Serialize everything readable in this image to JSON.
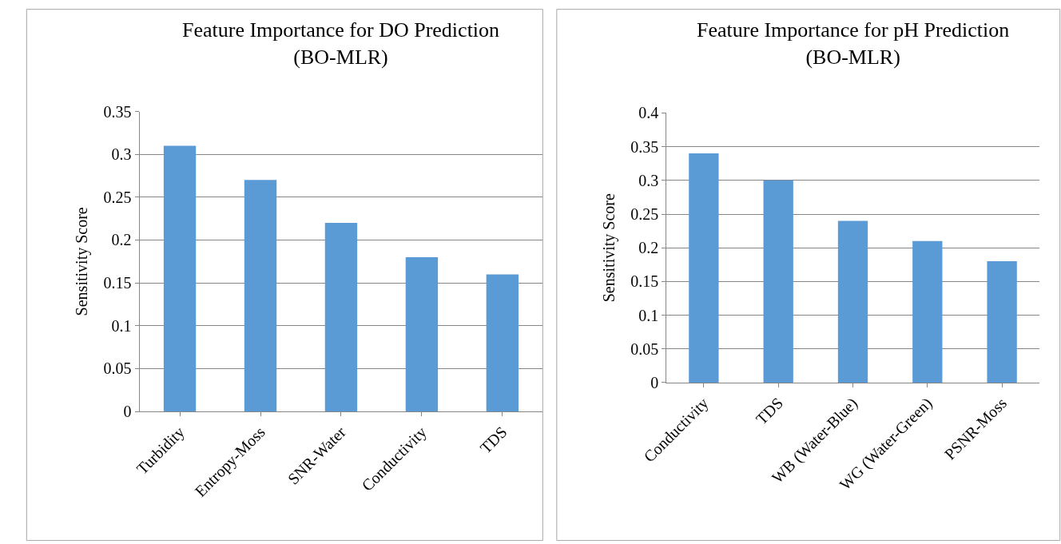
{
  "chart_data": [
    {
      "type": "bar",
      "title": "Feature Importance for DO Prediction\n(BO-MLR)",
      "ylabel": "Sensitivity Score",
      "categories": [
        "Turbidity",
        "Entropy-Moss",
        "SNR-Water",
        "Conductivity",
        "TDS"
      ],
      "values": [
        0.31,
        0.27,
        0.22,
        0.18,
        0.16
      ],
      "color": "#5b9bd5",
      "ylim": [
        0,
        0.35
      ],
      "yticks": [
        {
          "value": 0,
          "label": "0"
        },
        0.05,
        0.1,
        0.15,
        0.2,
        0.25,
        0.3,
        0.35
      ],
      "grid": "y"
    },
    {
      "type": "bar",
      "title": "Feature Importance for pH Prediction\n(BO-MLR)",
      "ylabel": "Sensitivity Score",
      "categories": [
        "Conductivity",
        "TDS",
        "WB (Water-Blue)",
        "WG (Water-Green)",
        "PSNR-Moss"
      ],
      "values": [
        0.34,
        0.3,
        0.24,
        0.21,
        0.18
      ],
      "color": "#5b9bd5",
      "ylim": [
        0,
        0.4
      ],
      "yticks": [
        {
          "value": 0,
          "label": "0"
        },
        0.05,
        0.1,
        0.15,
        0.2,
        0.25,
        0.3,
        0.35,
        0.4
      ],
      "grid": "y"
    }
  ]
}
